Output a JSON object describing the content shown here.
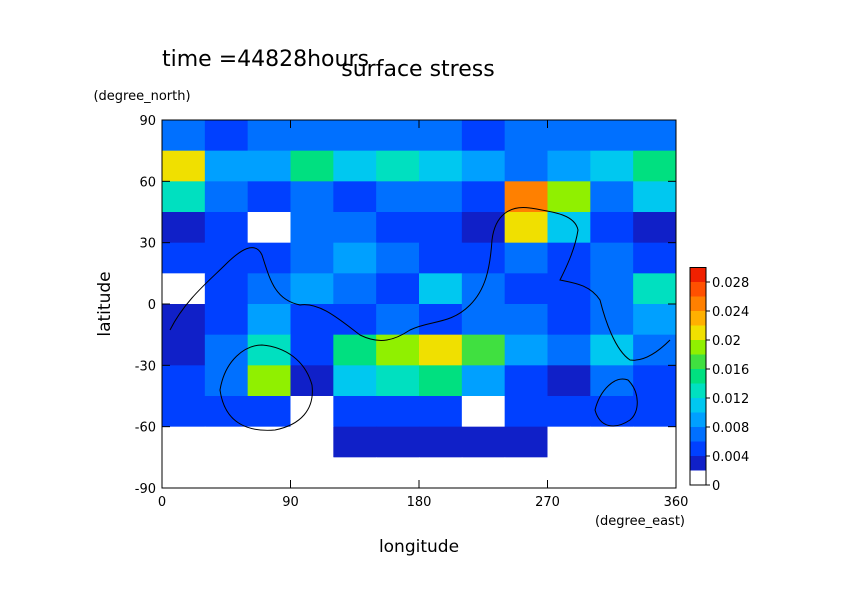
{
  "chart_data": {
    "type": "contour",
    "title": "surface stress",
    "subtitle": "time =44828hours",
    "x_label": "longitude",
    "x_unit": "(degree_east)",
    "y_label": "latitude",
    "y_unit": "(degree_north)",
    "x": [
      15,
      45,
      75,
      105,
      135,
      165,
      195,
      225,
      255,
      285,
      315,
      345
    ],
    "y": [
      82.5,
      67.5,
      52.5,
      37.5,
      22.5,
      7.5,
      -7.5,
      -22.5,
      -37.5,
      -52.5,
      -67.5,
      -82.5
    ],
    "z": [
      [
        0.006,
        0.005,
        0.006,
        0.006,
        0.007,
        0.006,
        0.006,
        0.005,
        0.006,
        0.006,
        0.007,
        0.006
      ],
      [
        0.02,
        0.008,
        0.008,
        0.014,
        0.01,
        0.012,
        0.01,
        0.008,
        0.007,
        0.008,
        0.01,
        0.014
      ],
      [
        0.012,
        0.006,
        0.005,
        0.006,
        0.005,
        0.006,
        0.006,
        0.005,
        0.024,
        0.018,
        0.006,
        0.01
      ],
      [
        0.002,
        0.004,
        0.001,
        0.006,
        0.007,
        0.005,
        0.005,
        0.002,
        0.02,
        0.01,
        0.004,
        0.003
      ],
      [
        0.004,
        0.005,
        0.004,
        0.007,
        0.009,
        0.006,
        0.004,
        0.005,
        0.006,
        0.004,
        0.006,
        0.005
      ],
      [
        0.001,
        0.005,
        0.006,
        0.008,
        0.006,
        0.005,
        0.01,
        0.006,
        0.004,
        0.005,
        0.007,
        0.012
      ],
      [
        0.003,
        0.004,
        0.008,
        0.005,
        0.005,
        0.006,
        0.004,
        0.006,
        0.006,
        0.005,
        0.007,
        0.008
      ],
      [
        0.003,
        0.007,
        0.012,
        0.004,
        0.014,
        0.018,
        0.02,
        0.016,
        0.008,
        0.006,
        0.01,
        0.006
      ],
      [
        0.004,
        0.006,
        0.018,
        0.002,
        0.01,
        0.012,
        0.014,
        0.009,
        0.004,
        0.002,
        0.006,
        0.005
      ],
      [
        0.004,
        0.004,
        0.005,
        0.001,
        0.004,
        0.005,
        0.004,
        0.001,
        0.004,
        0.005,
        0.004,
        0.004
      ],
      [
        0.001,
        0.001,
        0.001,
        0.001,
        0.002,
        0.003,
        0.003,
        0.003,
        0.002,
        0.001,
        0.001,
        0.001
      ],
      [
        0,
        0,
        0,
        0,
        0,
        0,
        0,
        0,
        0,
        0,
        0,
        0
      ]
    ],
    "xlim": [
      0,
      360
    ],
    "ylim": [
      -90,
      90
    ],
    "xticks": [
      0,
      90,
      180,
      270,
      360
    ],
    "yticks": [
      -90,
      -60,
      -30,
      0,
      30,
      60,
      90
    ],
    "levels": [
      0,
      0.002,
      0.004,
      0.006,
      0.008,
      0.01,
      0.012,
      0.014,
      0.016,
      0.018,
      0.02,
      0.022,
      0.024,
      0.026,
      0.028,
      0.03
    ],
    "colors": [
      "#ffffff",
      "#1020c8",
      "#0040ff",
      "#0070ff",
      "#00a0ff",
      "#00c8f0",
      "#00e0c0",
      "#00e080",
      "#40e040",
      "#90f000",
      "#f0e000",
      "#ffb000",
      "#ff8000",
      "#ff5000",
      "#f02000"
    ],
    "clim": [
      0,
      0.03
    ],
    "cticks": [
      0,
      0.004,
      0.008,
      0.012,
      0.016,
      0.02,
      0.024,
      0.028
    ]
  }
}
